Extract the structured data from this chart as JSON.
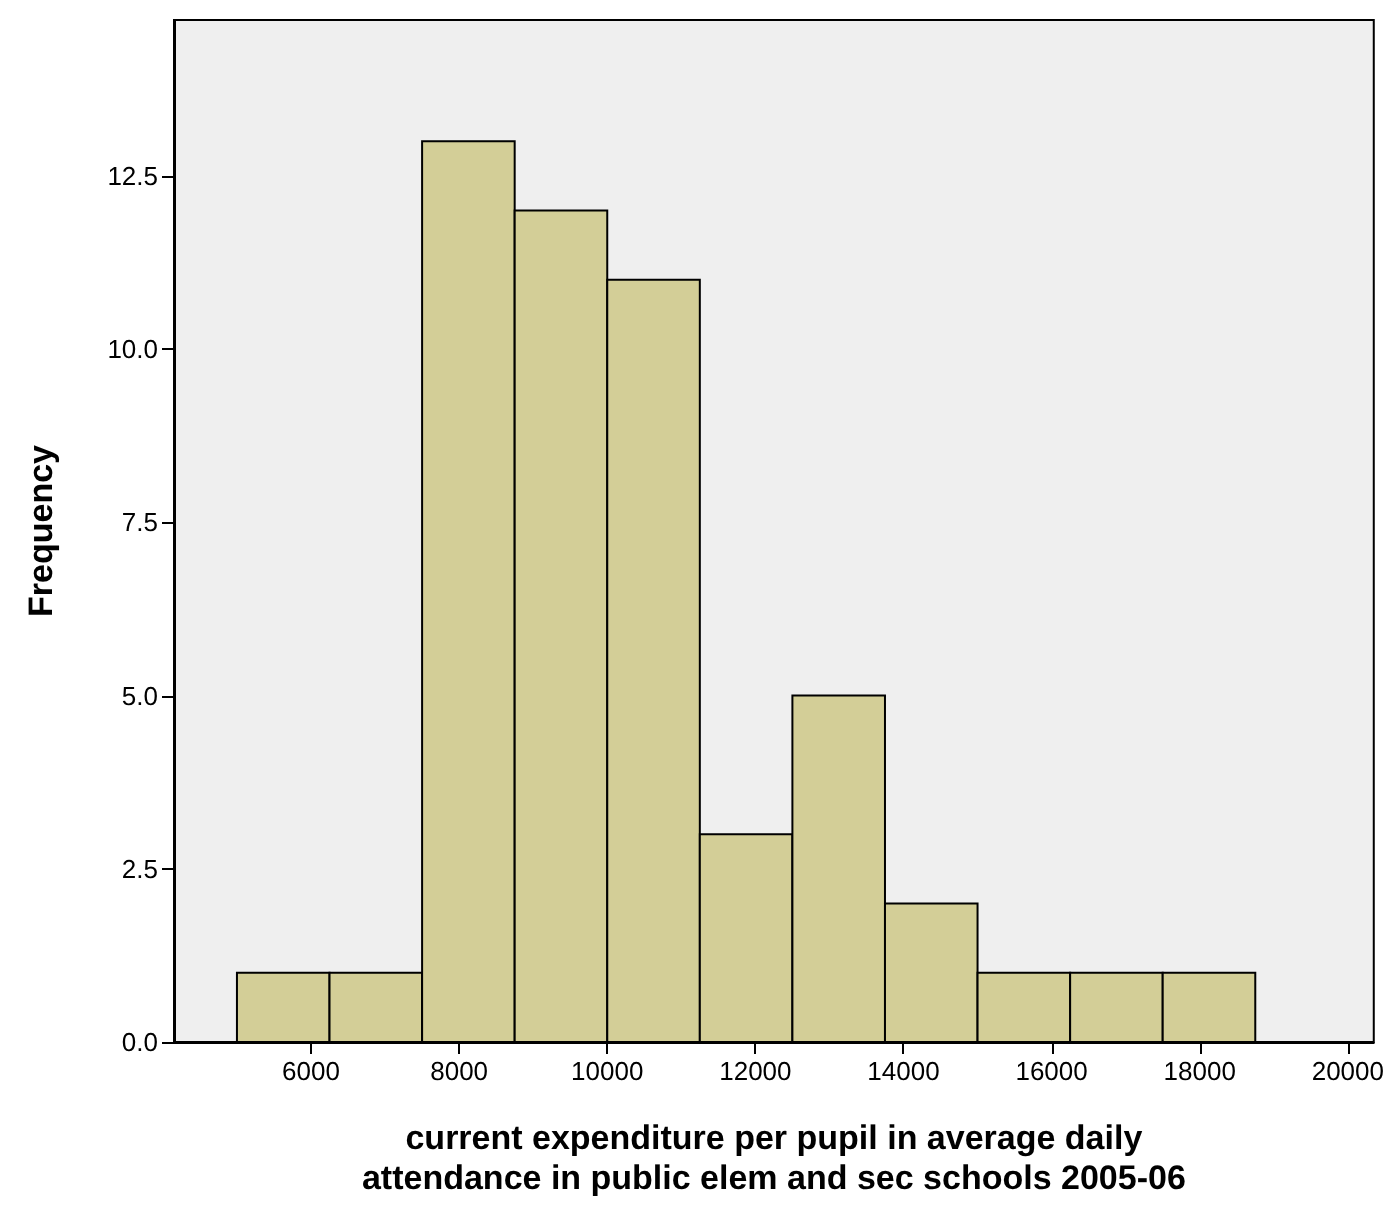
{
  "chart_data": {
    "type": "histogram",
    "xlabel": "current expenditure per pupil in average daily\nattendance in public elem and sec schools 2005-06",
    "ylabel": "Frequency",
    "bins": [
      5000,
      6250,
      7500,
      8750,
      10000,
      11250,
      12500,
      13750,
      15000,
      16250,
      17500,
      18750
    ],
    "values": [
      1,
      1,
      13,
      12,
      11,
      3,
      5,
      2,
      1,
      1,
      1
    ],
    "color": "#d3ce97",
    "xlim": [
      4150,
      20350
    ],
    "xticks": [
      6000,
      8000,
      10000,
      12000,
      14000,
      16000,
      18000,
      20000
    ],
    "ylim": [
      0,
      14.75
    ],
    "yticks": [
      {
        "value": 0,
        "label": "0.0"
      },
      2.5,
      {
        "value": 5,
        "label": "5.0"
      },
      7.5,
      {
        "value": 10,
        "label": "10.0"
      },
      12.5
    ],
    "grid": false
  }
}
